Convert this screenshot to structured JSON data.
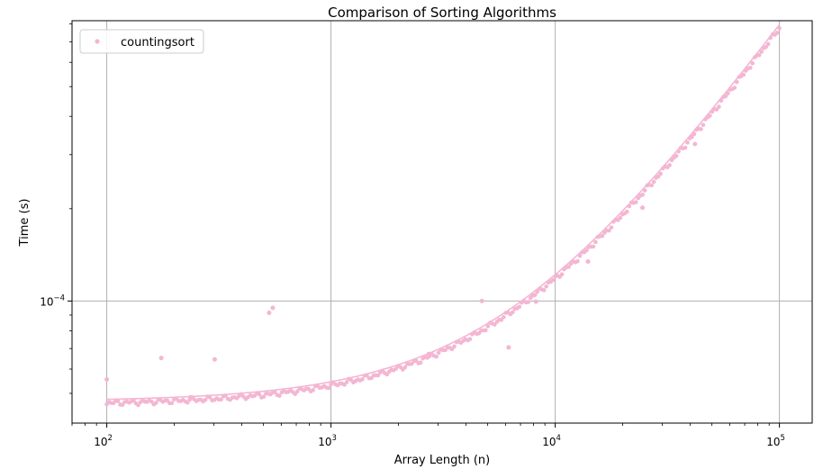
{
  "chart_data": {
    "type": "scatter",
    "title": "Comparison of Sorting Algorithms",
    "xlabel": "Array Length (n)",
    "ylabel": "Time (s)",
    "xscale": "log",
    "yscale": "log",
    "xlim": [
      70,
      140000
    ],
    "ylim": [
      4e-05,
      0.00082
    ],
    "grid": true,
    "legend_position": "top-left",
    "x_ticks": [
      {
        "base": "10",
        "exp": "2",
        "value": 100
      },
      {
        "base": "10",
        "exp": "3",
        "value": 1000
      },
      {
        "base": "10",
        "exp": "4",
        "value": 10000
      },
      {
        "base": "10",
        "exp": "5",
        "value": 100000
      }
    ],
    "y_ticks": [
      {
        "base": "10",
        "exp": "−4",
        "value": 0.0001
      }
    ],
    "series": [
      {
        "name": "countingsort",
        "color": "#f4b6d2",
        "marker": "dot",
        "fit_line": true,
        "base_time": 4.65e-05,
        "slope_per_element": 7.4e-09,
        "outliers": [
          {
            "x": 100,
            "y": 5.55e-05
          },
          {
            "x": 175,
            "y": 6.52e-05
          },
          {
            "x": 236,
            "y": 4.85e-05
          },
          {
            "x": 303,
            "y": 6.45e-05
          },
          {
            "x": 530,
            "y": 9.15e-05
          },
          {
            "x": 550,
            "y": 9.5e-05
          },
          {
            "x": 2730,
            "y": 6.72e-05
          },
          {
            "x": 4710,
            "y": 0.0001
          },
          {
            "x": 6200,
            "y": 7.06e-05
          },
          {
            "x": 8200,
            "y": 9.95e-05
          },
          {
            "x": 14000,
            "y": 0.0001345
          },
          {
            "x": 24500,
            "y": 0.0002015
          },
          {
            "x": 42000,
            "y": 0.000325
          }
        ]
      }
    ]
  }
}
